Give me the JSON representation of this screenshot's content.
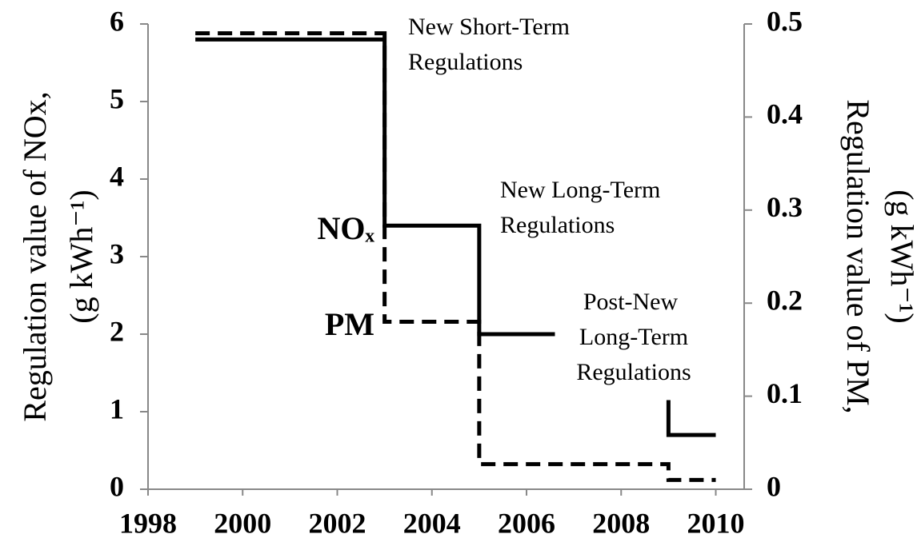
{
  "chart_data": {
    "type": "line",
    "y_label": [
      "Regulation value of NOx,",
      "(g kWh⁻¹)"
    ],
    "y2_label": [
      "Regulation value of PM,",
      "(g kWh⁻¹)"
    ],
    "xlim": [
      1998,
      2010.6
    ],
    "xticks": [
      1998,
      2000,
      2002,
      2004,
      2006,
      2008,
      2010
    ],
    "ylim": [
      0,
      6
    ],
    "yticks": [
      0,
      1,
      2,
      3,
      4,
      5,
      6
    ],
    "y2lim": [
      0,
      0.5
    ],
    "y2ticks": [
      0,
      0.1,
      0.2,
      0.3,
      0.4,
      0.5
    ],
    "series": [
      {
        "name": "NOₓ",
        "color": "#000000",
        "dash": false,
        "x": [
          1999,
          2003,
          2003,
          2005,
          2005,
          2006.6,
          null,
          2009,
          2009,
          2010
        ],
        "values": [
          5.8,
          5.8,
          3.4,
          3.4,
          2.0,
          2.0,
          null,
          1.15,
          0.7,
          0.7
        ]
      },
      {
        "name": "PM",
        "color": "#000000",
        "dash": true,
        "axis": "y2",
        "x": [
          1999,
          2003,
          2003,
          2005,
          2005,
          2009,
          2009,
          2010
        ],
        "values": [
          0.49,
          0.49,
          0.18,
          0.18,
          0.027,
          0.027,
          0.01,
          0.01
        ]
      }
    ],
    "annotations": [
      [
        "New Short-Term",
        "Regulations"
      ],
      [
        "New Long-Term",
        "Regulations"
      ],
      [
        "Post-New",
        "Long-Term",
        "Regulations"
      ]
    ]
  }
}
